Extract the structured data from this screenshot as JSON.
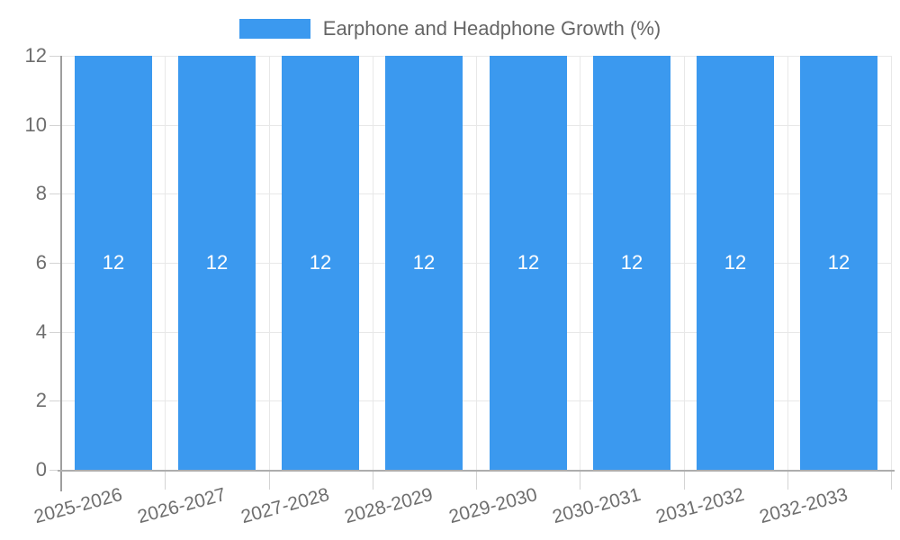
{
  "legend": {
    "label": "Earphone and Headphone Growth (%)"
  },
  "chart_data": {
    "type": "bar",
    "title": "",
    "categories": [
      "2025-2026",
      "2026-2027",
      "2027-2028",
      "2028-2029",
      "2029-2030",
      "2030-2031",
      "2031-2032",
      "2032-2033"
    ],
    "series": [
      {
        "name": "Earphone and Headphone Growth (%)",
        "values": [
          12,
          12,
          12,
          12,
          12,
          12,
          12,
          12
        ]
      }
    ],
    "value_labels": [
      "12",
      "12",
      "12",
      "12",
      "12",
      "12",
      "12",
      "12"
    ],
    "xlabel": "",
    "ylabel": "",
    "ylim": [
      0,
      12
    ],
    "yticks": [
      0,
      2,
      4,
      6,
      8,
      10,
      12
    ],
    "grid": "on",
    "legend_position": "top-center"
  },
  "colors": {
    "bar": "#3B99EF",
    "value_label": "#FFFFFF",
    "grid_line": "#E8E8E8",
    "tick_mark": "#D4D4D4",
    "y_axis_line": "#9E9E9E",
    "baseline": "#ADADAD",
    "axis_label_text": "#6E6E6E",
    "legend_text": "#666666",
    "background": "#FFFFFF"
  }
}
